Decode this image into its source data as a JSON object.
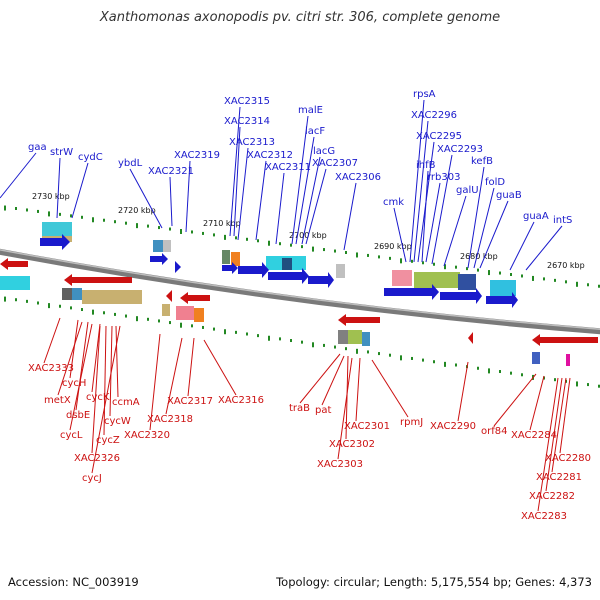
{
  "title": "Xanthomonas axonopodis pv. citri str. 306, complete genome",
  "footer": {
    "accession": "Accession: NC_003919",
    "topology": "Topology: circular; Length: 5,175,554 bp; Genes: 4,373"
  },
  "colors": {
    "forward": "#1a1acc",
    "reverse": "#cc1111",
    "backbone": "#808080",
    "tick": "#228822"
  },
  "kbp_marks": [
    "2730 kbp",
    "2720 kbp",
    "2710 kbp",
    "2700 kbp",
    "2690 kbp",
    "2680 kbp",
    "2670 kbp"
  ],
  "forward_genes": [
    "gaa",
    "strW",
    "cydC",
    "ybdL",
    "XAC2321",
    "XAC2319",
    "XAC2315",
    "XAC2314",
    "XAC2313",
    "XAC2312",
    "XAC2311",
    "malE",
    "lacF",
    "lacG",
    "XAC2307",
    "XAC2306",
    "cmk",
    "rpsA",
    "XAC2296",
    "XAC2295",
    "ihfB",
    "rrb303",
    "XAC2293",
    "galU",
    "kefB",
    "folD",
    "guaB",
    "guaA",
    "intS"
  ],
  "reverse_genes": [
    "XAC2333",
    "cycH",
    "metX",
    "dsbE",
    "cycL",
    "cycK",
    "ccmA",
    "cycW",
    "cycZ",
    "XAC2326",
    "cycJ",
    "XAC2320",
    "XAC2318",
    "XAC2317",
    "XAC2316",
    "traB",
    "pat",
    "XAC2302",
    "XAC2303",
    "XAC2301",
    "rpmJ",
    "XAC2290",
    "orf84",
    "XAC2284",
    "XAC2280",
    "XAC2281",
    "XAC2282",
    "XAC2283"
  ]
}
